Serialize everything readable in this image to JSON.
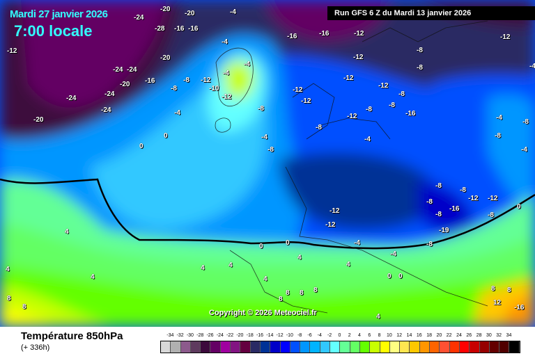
{
  "header": {
    "date": "Mardi 27 janvier 2026",
    "time": "7:00 locale",
    "run": "Run GFS 6 Z du Mardi 13 janvier 2026"
  },
  "copyright": "Copyright © 2026 Meteociel.fr",
  "footer": {
    "title": "Température 850hPa",
    "subtitle": "(+ 336h)"
  },
  "legend": {
    "ticks": [
      "-34",
      "-32",
      "-30",
      "-28",
      "-26",
      "-24",
      "-22",
      "-20",
      "-18",
      "-16",
      "-14",
      "-12",
      "-10",
      "-8",
      "-6",
      "-4",
      "-2",
      "0",
      "2",
      "4",
      "6",
      "8",
      "10",
      "12",
      "14",
      "16",
      "18",
      "20",
      "22",
      "24",
      "26",
      "28",
      "30",
      "32",
      "34"
    ],
    "colors": [
      "#d8d8d8",
      "#b0b0b0",
      "#8c5a8c",
      "#5e3a5e",
      "#3c0a3c",
      "#640064",
      "#a000a0",
      "#821482",
      "#640040",
      "#2a2a64",
      "#003296",
      "#0000c8",
      "#0000ff",
      "#0050ff",
      "#0096ff",
      "#00b4ff",
      "#32c8ff",
      "#64ffff",
      "#64ff96",
      "#64ff64",
      "#64ff00",
      "#c8ff00",
      "#ffff00",
      "#ffff82",
      "#ffe650",
      "#ffc800",
      "#ff9600",
      "#ff6400",
      "#ff5032",
      "#ff3200",
      "#ff0000",
      "#c80000",
      "#960000",
      "#640000",
      "#500000",
      "#000000"
    ]
  },
  "map": {
    "contour_labels": [
      "-12",
      "-20",
      "-24",
      "-28",
      "-16",
      "-16",
      "-20",
      "-20",
      "-24",
      "-24",
      "-16",
      "-24",
      "-24",
      "-20",
      "-24",
      "-20",
      "-4",
      "-4",
      "-8",
      "-8",
      "-12",
      "-10",
      "-12",
      "-4",
      "-8",
      "-4",
      "-4",
      "0",
      "0",
      "-4",
      "-8",
      "-12",
      "-12",
      "-16",
      "-16",
      "-12",
      "-12",
      "-12",
      "-12",
      "-8",
      "-8",
      "-8",
      "-8",
      "-8",
      "-8",
      "-12",
      "-8",
      "-8",
      "-4",
      "-4",
      "-4",
      "-4",
      "-12",
      "-16",
      "-8",
      "-8",
      "-8",
      "-8",
      "-12",
      "-16",
      "-19",
      "-12",
      "-8",
      "-8",
      "0",
      "-12",
      "-12",
      "-4",
      "-4",
      "0",
      "0",
      "0",
      "0",
      "4",
      "4",
      "4",
      "4",
      "4",
      "4",
      "4",
      "4",
      "8",
      "8",
      "8",
      "8",
      "8",
      "8",
      "8",
      "4",
      "8",
      "12",
      "-16"
    ]
  }
}
